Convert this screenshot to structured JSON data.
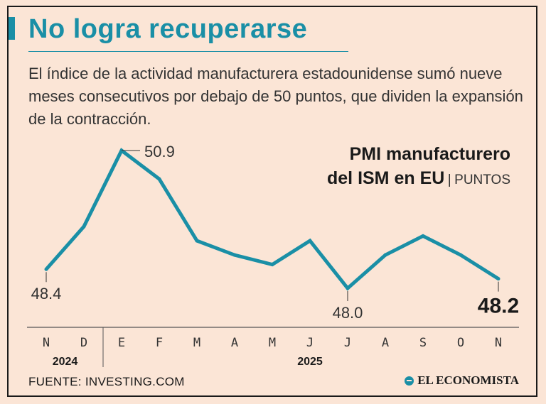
{
  "header": {
    "title": "No logra recuperarse",
    "subtitle": "El índice de la actividad manufacturera estadounidense sumó nueve meses consecutivos por debajo de 50 puntos, que dividen la expansión de la contracción."
  },
  "chart_title": {
    "line1": "PMI manufacturero",
    "line2": "del ISM en EU",
    "separator": "|",
    "unit": "PUNTOS"
  },
  "chart_data": {
    "type": "line",
    "title": "PMI manufacturero del ISM en EU",
    "ylabel": "PUNTOS",
    "xlabel": "",
    "categories": [
      "N",
      "D",
      "E",
      "F",
      "M",
      "A",
      "M",
      "J",
      "J",
      "A",
      "S",
      "O",
      "N"
    ],
    "values": [
      48.4,
      49.3,
      50.9,
      50.3,
      49.0,
      48.7,
      48.5,
      49.0,
      48.0,
      48.7,
      49.1,
      48.7,
      48.2
    ],
    "year_groups": [
      {
        "label": "2024",
        "start": 0,
        "end": 1
      },
      {
        "label": "2025",
        "start": 2,
        "end": 12
      }
    ],
    "annotations": [
      {
        "index": 0,
        "text": "48.4",
        "position": "below",
        "emphasis": false
      },
      {
        "index": 2,
        "text": "50.9",
        "position": "right",
        "emphasis": false
      },
      {
        "index": 8,
        "text": "48.0",
        "position": "below",
        "emphasis": false
      },
      {
        "index": 12,
        "text": "48.2",
        "position": "below",
        "emphasis": true
      }
    ],
    "series_color": "#1a8fa6"
  },
  "footer": {
    "source": "FUENTE: INVESTING.COM",
    "brand": "EL ECONOMISTA"
  }
}
